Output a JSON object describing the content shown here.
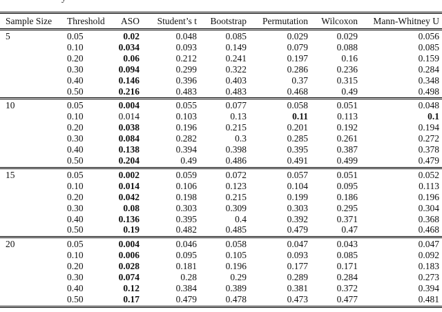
{
  "caption_fragment": "y",
  "table": {
    "columns": [
      "Sample Size",
      "Threshold",
      "ASO",
      "Student’s t",
      "Bootstrap",
      "Permutation",
      "Wilcoxon",
      "Mann-Whitney U"
    ],
    "rule_color": "#000000",
    "text_color": "#111111",
    "groups": [
      {
        "sample_size": "5",
        "rows": [
          {
            "threshold": "0.05",
            "values": [
              "0.02",
              "0.048",
              "0.085",
              "0.029",
              "0.029",
              "0.056"
            ],
            "bold": [
              0
            ]
          },
          {
            "threshold": "0.10",
            "values": [
              "0.034",
              "0.093",
              "0.149",
              "0.079",
              "0.088",
              "0.085"
            ],
            "bold": [
              0
            ]
          },
          {
            "threshold": "0.20",
            "values": [
              "0.06",
              "0.212",
              "0.241",
              "0.197",
              "0.16",
              "0.159"
            ],
            "bold": [
              0
            ]
          },
          {
            "threshold": "0.30",
            "values": [
              "0.094",
              "0.299",
              "0.322",
              "0.286",
              "0.236",
              "0.284"
            ],
            "bold": [
              0
            ]
          },
          {
            "threshold": "0.40",
            "values": [
              "0.146",
              "0.396",
              "0.403",
              "0.37",
              "0.315",
              "0.348"
            ],
            "bold": [
              0
            ]
          },
          {
            "threshold": "0.50",
            "values": [
              "0.216",
              "0.483",
              "0.483",
              "0.468",
              "0.49",
              "0.498"
            ],
            "bold": [
              0
            ]
          }
        ]
      },
      {
        "sample_size": "10",
        "rows": [
          {
            "threshold": "0.05",
            "values": [
              "0.004",
              "0.055",
              "0.077",
              "0.058",
              "0.051",
              "0.048"
            ],
            "bold": [
              0
            ]
          },
          {
            "threshold": "0.10",
            "values": [
              "0.014",
              "0.103",
              "0.13",
              "0.11",
              "0.113",
              "0.1"
            ],
            "bold": [
              3,
              5
            ]
          },
          {
            "threshold": "0.20",
            "values": [
              "0.038",
              "0.196",
              "0.215",
              "0.201",
              "0.192",
              "0.194"
            ],
            "bold": [
              0
            ]
          },
          {
            "threshold": "0.30",
            "values": [
              "0.084",
              "0.282",
              "0.3",
              "0.285",
              "0.261",
              "0.272"
            ],
            "bold": [
              0
            ]
          },
          {
            "threshold": "0.40",
            "values": [
              "0.138",
              "0.394",
              "0.398",
              "0.395",
              "0.387",
              "0.378"
            ],
            "bold": [
              0
            ]
          },
          {
            "threshold": "0.50",
            "values": [
              "0.204",
              "0.49",
              "0.486",
              "0.491",
              "0.499",
              "0.479"
            ],
            "bold": [
              0
            ]
          }
        ]
      },
      {
        "sample_size": "15",
        "rows": [
          {
            "threshold": "0.05",
            "values": [
              "0.002",
              "0.059",
              "0.072",
              "0.057",
              "0.051",
              "0.052"
            ],
            "bold": [
              0
            ]
          },
          {
            "threshold": "0.10",
            "values": [
              "0.014",
              "0.106",
              "0.123",
              "0.104",
              "0.095",
              "0.113"
            ],
            "bold": [
              0
            ]
          },
          {
            "threshold": "0.20",
            "values": [
              "0.042",
              "0.198",
              "0.215",
              "0.199",
              "0.186",
              "0.196"
            ],
            "bold": [
              0
            ]
          },
          {
            "threshold": "0.30",
            "values": [
              "0.08",
              "0.303",
              "0.309",
              "0.303",
              "0.295",
              "0.304"
            ],
            "bold": [
              0
            ]
          },
          {
            "threshold": "0.40",
            "values": [
              "0.136",
              "0.395",
              "0.4",
              "0.392",
              "0.371",
              "0.368"
            ],
            "bold": [
              0
            ]
          },
          {
            "threshold": "0.50",
            "values": [
              "0.19",
              "0.482",
              "0.485",
              "0.479",
              "0.47",
              "0.468"
            ],
            "bold": [
              0
            ]
          }
        ]
      },
      {
        "sample_size": "20",
        "rows": [
          {
            "threshold": "0.05",
            "values": [
              "0.004",
              "0.046",
              "0.058",
              "0.047",
              "0.043",
              "0.047"
            ],
            "bold": [
              0
            ]
          },
          {
            "threshold": "0.10",
            "values": [
              "0.006",
              "0.095",
              "0.105",
              "0.093",
              "0.085",
              "0.092"
            ],
            "bold": [
              0
            ]
          },
          {
            "threshold": "0.20",
            "values": [
              "0.028",
              "0.181",
              "0.196",
              "0.177",
              "0.171",
              "0.183"
            ],
            "bold": [
              0
            ]
          },
          {
            "threshold": "0.30",
            "values": [
              "0.074",
              "0.28",
              "0.29",
              "0.289",
              "0.284",
              "0.273"
            ],
            "bold": [
              0
            ]
          },
          {
            "threshold": "0.40",
            "values": [
              "0.12",
              "0.384",
              "0.389",
              "0.381",
              "0.372",
              "0.394"
            ],
            "bold": [
              0
            ]
          },
          {
            "threshold": "0.50",
            "values": [
              "0.17",
              "0.479",
              "0.478",
              "0.473",
              "0.477",
              "0.481"
            ],
            "bold": [
              0
            ]
          }
        ]
      }
    ]
  }
}
